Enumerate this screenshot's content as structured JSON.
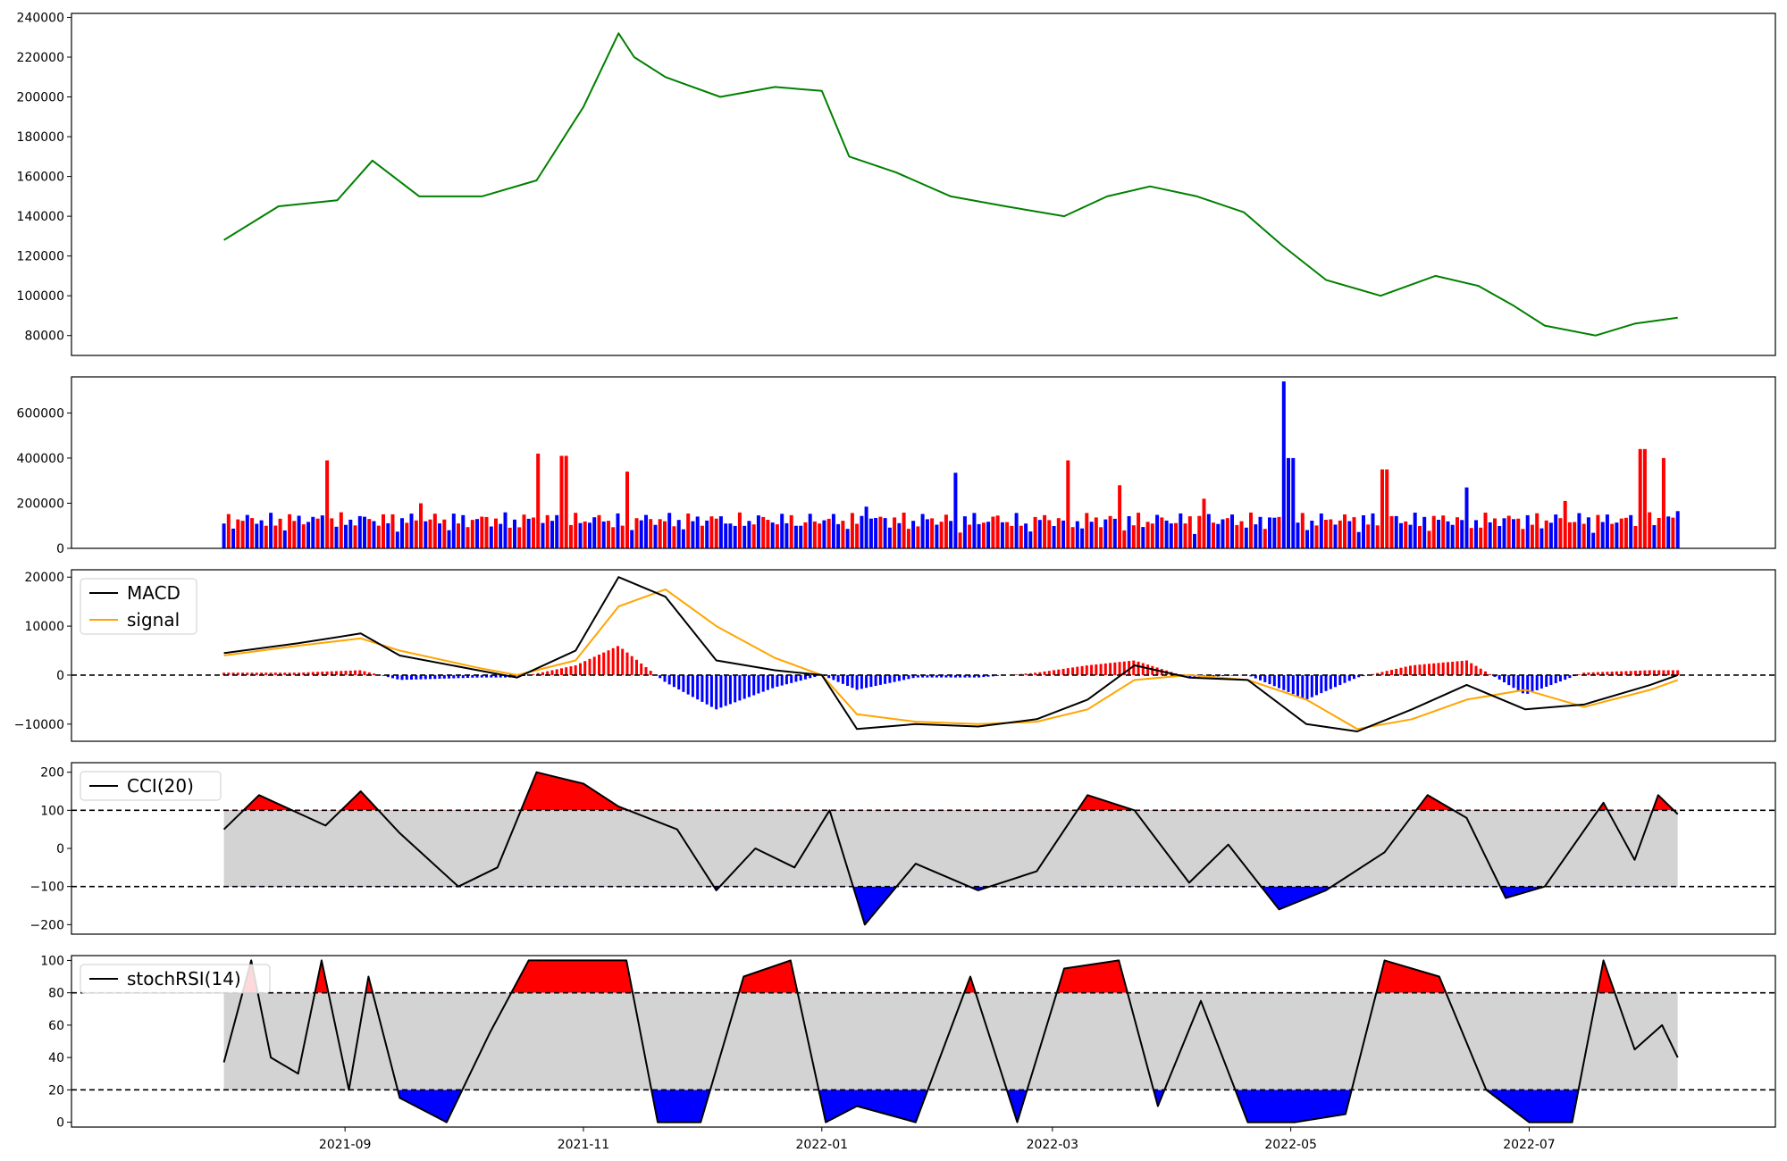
{
  "chart_data": [
    {
      "type": "line",
      "panel": "price",
      "color": "#008000",
      "ylim": [
        70000,
        242000
      ],
      "yticks": [
        80000,
        100000,
        120000,
        140000,
        160000,
        180000,
        200000,
        220000,
        240000
      ],
      "ytick_labels": [
        "80000",
        "100000",
        "120000",
        "140000",
        "160000",
        "180000",
        "200000",
        "220000",
        "240000"
      ],
      "x": [
        "2021-08-01",
        "2021-08-15",
        "2021-08-30",
        "2021-09-08",
        "2021-09-20",
        "2021-10-06",
        "2021-10-20",
        "2021-11-01",
        "2021-11-10",
        "2021-11-14",
        "2021-11-22",
        "2021-12-06",
        "2021-12-20",
        "2022-01-01",
        "2022-01-08",
        "2022-01-20",
        "2022-02-03",
        "2022-02-17",
        "2022-03-04",
        "2022-03-15",
        "2022-03-26",
        "2022-04-07",
        "2022-04-19",
        "2022-04-29",
        "2022-05-10",
        "2022-05-24",
        "2022-06-07",
        "2022-06-18",
        "2022-06-27",
        "2022-07-05",
        "2022-07-18",
        "2022-07-28",
        "2022-08-08"
      ],
      "y": [
        128000,
        145000,
        148000,
        168000,
        150000,
        150000,
        158000,
        195000,
        232000,
        220000,
        210000,
        200000,
        205000,
        203000,
        170000,
        162000,
        150000,
        145000,
        140000,
        150000,
        155000,
        150000,
        142000,
        125000,
        108000,
        100000,
        110000,
        105000,
        95000,
        85000,
        80000,
        86000,
        89000
      ]
    },
    {
      "type": "bar",
      "panel": "volume",
      "ylim": [
        0,
        760000
      ],
      "yticks": [
        0,
        200000,
        400000,
        600000
      ],
      "ytick_labels": [
        "0",
        "200000",
        "400000",
        "600000"
      ],
      "x": [
        "2021-08-01",
        "2021-08-12",
        "2021-08-27",
        "2021-09-20",
        "2021-10-05",
        "2021-10-20",
        "2021-10-27",
        "2021-11-12",
        "2021-12-08",
        "2021-12-26",
        "2022-01-12",
        "2022-02-04",
        "2022-02-22",
        "2022-03-05",
        "2022-03-18",
        "2022-04-09",
        "2022-04-29",
        "2022-05-01",
        "2022-05-25",
        "2022-06-15",
        "2022-07-10",
        "2022-07-30",
        "2022-08-04",
        "2022-08-08"
      ],
      "values": [
        110000,
        100000,
        390000,
        200000,
        130000,
        420000,
        410000,
        340000,
        110000,
        100000,
        185000,
        335000,
        110000,
        390000,
        280000,
        220000,
        740000,
        400000,
        350000,
        270000,
        210000,
        440000,
        400000,
        165000
      ],
      "colors": [
        "#0000ff",
        "#ff0000",
        "#ff0000",
        "#ff0000",
        "#0000ff",
        "#ff0000",
        "#ff0000",
        "#ff0000",
        "#0000ff",
        "#0000ff",
        "#0000ff",
        "#0000ff",
        "#0000ff",
        "#ff0000",
        "#ff0000",
        "#ff0000",
        "#0000ff",
        "#0000ff",
        "#ff0000",
        "#0000ff",
        "#ff0000",
        "#ff0000",
        "#ff0000",
        "#0000ff"
      ]
    },
    {
      "type": "line",
      "panel": "macd",
      "ylim": [
        -13500,
        21500
      ],
      "yticks": [
        -10000,
        0,
        10000,
        20000
      ],
      "ytick_labels": [
        "−10000",
        "0",
        "10000",
        "20000"
      ],
      "legend": [
        "MACD",
        "signal"
      ],
      "colors": {
        "macd": "#000000",
        "signal": "#ffa500",
        "hist_pos": "#ff0000",
        "hist_neg": "#0000ff"
      },
      "x": [
        "2021-08-01",
        "2021-08-20",
        "2021-09-05",
        "2021-09-15",
        "2021-10-05",
        "2021-10-15",
        "2021-10-30",
        "2021-11-10",
        "2021-11-22",
        "2021-12-05",
        "2021-12-20",
        "2022-01-01",
        "2022-01-10",
        "2022-01-25",
        "2022-02-10",
        "2022-02-25",
        "2022-03-10",
        "2022-03-22",
        "2022-04-05",
        "2022-04-20",
        "2022-05-05",
        "2022-05-18",
        "2022-06-01",
        "2022-06-15",
        "2022-06-30",
        "2022-07-15",
        "2022-08-01",
        "2022-08-08"
      ],
      "macd": [
        4500,
        6500,
        8500,
        4000,
        1000,
        -500,
        5000,
        20000,
        16000,
        3000,
        1000,
        0,
        -11000,
        -10000,
        -10500,
        -9000,
        -5000,
        2000,
        -500,
        -1000,
        -10000,
        -11500,
        -7000,
        -2000,
        -7000,
        -6000,
        -2000,
        0
      ],
      "signal": [
        4000,
        6000,
        7500,
        5000,
        1500,
        0,
        3000,
        14000,
        17500,
        10000,
        3500,
        0,
        -8000,
        -9500,
        -10000,
        -9500,
        -7000,
        -1000,
        0,
        -1000,
        -5000,
        -11000,
        -9000,
        -5000,
        -3000,
        -6500,
        -3000,
        -1000
      ]
    },
    {
      "type": "line",
      "panel": "cci",
      "ylim": [
        -225,
        225
      ],
      "yticks": [
        -200,
        -100,
        0,
        100,
        200
      ],
      "ytick_labels": [
        "−200",
        "−100",
        "0",
        "100",
        "200"
      ],
      "legend": [
        "CCI(20)"
      ],
      "thresholds": [
        100,
        -100
      ],
      "x": [
        "2021-08-01",
        "2021-08-10",
        "2021-08-27",
        "2021-09-05",
        "2021-09-15",
        "2021-09-30",
        "2021-10-10",
        "2021-10-20",
        "2021-11-01",
        "2021-11-10",
        "2021-11-25",
        "2021-12-05",
        "2021-12-15",
        "2021-12-25",
        "2022-01-03",
        "2022-01-12",
        "2022-01-25",
        "2022-02-10",
        "2022-02-25",
        "2022-03-10",
        "2022-03-22",
        "2022-04-05",
        "2022-04-15",
        "2022-04-28",
        "2022-05-10",
        "2022-05-25",
        "2022-06-05",
        "2022-06-15",
        "2022-06-25",
        "2022-07-05",
        "2022-07-20",
        "2022-07-28",
        "2022-08-03",
        "2022-08-08"
      ],
      "y": [
        50,
        140,
        60,
        150,
        40,
        -100,
        -50,
        200,
        170,
        110,
        50,
        -110,
        0,
        -50,
        100,
        -200,
        -40,
        -110,
        -60,
        140,
        100,
        -90,
        10,
        -160,
        -110,
        -10,
        140,
        80,
        -130,
        -100,
        120,
        -30,
        140,
        90
      ]
    },
    {
      "type": "line",
      "panel": "stochrsi",
      "ylim": [
        -3,
        103
      ],
      "yticks": [
        0,
        20,
        40,
        60,
        80,
        100
      ],
      "ytick_labels": [
        "0",
        "20",
        "40",
        "60",
        "80",
        "100"
      ],
      "legend": [
        "stochRSI(14)"
      ],
      "thresholds": [
        80,
        20
      ],
      "x": [
        "2021-08-01",
        "2021-08-08",
        "2021-08-13",
        "2021-08-20",
        "2021-08-26",
        "2021-09-02",
        "2021-09-07",
        "2021-09-15",
        "2021-09-27",
        "2021-10-08",
        "2021-10-18",
        "2021-10-30",
        "2021-11-12",
        "2021-11-20",
        "2021-12-01",
        "2021-12-12",
        "2021-12-24",
        "2022-01-02",
        "2022-01-10",
        "2022-01-25",
        "2022-02-08",
        "2022-02-20",
        "2022-03-04",
        "2022-03-18",
        "2022-03-28",
        "2022-04-08",
        "2022-04-20",
        "2022-05-02",
        "2022-05-15",
        "2022-05-25",
        "2022-06-08",
        "2022-06-20",
        "2022-07-01",
        "2022-07-12",
        "2022-07-20",
        "2022-07-28",
        "2022-08-04",
        "2022-08-08"
      ],
      "y": [
        37,
        100,
        40,
        30,
        100,
        20,
        90,
        15,
        0,
        55,
        100,
        100,
        100,
        0,
        0,
        90,
        100,
        0,
        10,
        0,
        90,
        0,
        95,
        100,
        10,
        75,
        0,
        0,
        5,
        100,
        90,
        20,
        0,
        0,
        100,
        45,
        60,
        40
      ]
    }
  ],
  "x_axis": {
    "ticks": [
      "2021-09",
      "2021-11",
      "2022-01",
      "2022-03",
      "2022-05",
      "2022-07"
    ]
  }
}
